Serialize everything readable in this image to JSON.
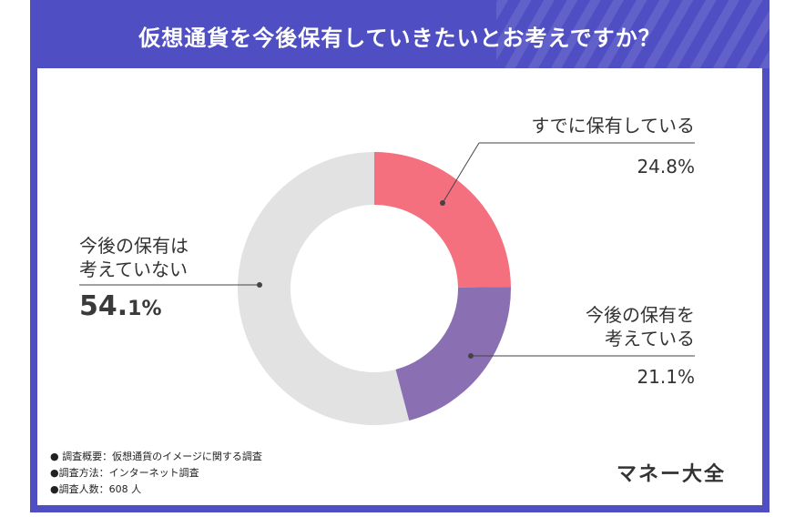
{
  "title": "仮想通貨を今後保有していきたいとお考えですか？",
  "chart_data": {
    "type": "pie",
    "slices": [
      {
        "label": "すでに保有している",
        "value": 24.8,
        "value_text": "24.8%",
        "color": "#f5707f"
      },
      {
        "label": "今後の保有を考えている",
        "value": 21.1,
        "value_text": "21.1%",
        "color": "#8a6fb2"
      },
      {
        "label": "今後の保有は考えていない",
        "value": 54.1,
        "value_text": "54.1%",
        "color": "#e2e2e2"
      }
    ]
  },
  "labels": {
    "owned_line1": "すでに保有している",
    "planned_line1": "今後の保有を",
    "planned_line2": "考えている",
    "not_line1": "今後の保有は",
    "not_line2": "考えていない",
    "not_value_int": "54.",
    "not_value_dec": "1%"
  },
  "notes": [
    "● 調査概要：仮想通貨のイメージに関する調査",
    "●調査方法：インターネット調査",
    "●調査人数：608 人"
  ],
  "brand": "マネー大全"
}
